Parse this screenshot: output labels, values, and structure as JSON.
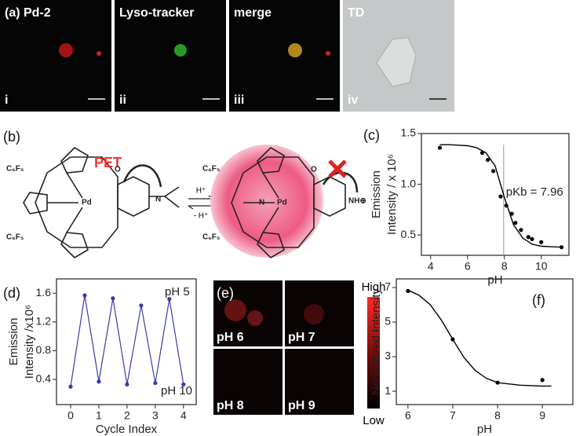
{
  "panel_a": {
    "tiles": [
      {
        "label": "(a) Pd-2",
        "index": "i"
      },
      {
        "label": "Lyso-tracker",
        "index": "ii"
      },
      {
        "label": "merge",
        "index": "iii"
      },
      {
        "label": "TD",
        "index": "iv"
      }
    ]
  },
  "panel_b": {
    "label": "(b)",
    "pet": "PET",
    "forward": "H⁺",
    "backward": "- H⁺",
    "left": {
      "aryl_top": "C₆F₅",
      "aryl_bottom": "C₆F₅",
      "metal": "Pd",
      "nitrogen": "N",
      "oxygen": "O"
    },
    "right": {
      "aryl_top": "C₆F₅",
      "aryl_bottom": "C₆F₅",
      "metal": "Pd",
      "nitrogen": "N",
      "oxygen": "O",
      "ammonium": "NH⊕"
    }
  },
  "panel_e": {
    "label": "(e)",
    "tiles": [
      "pH 6",
      "pH 7",
      "pH 8",
      "pH 9"
    ],
    "colorbar_high": "High",
    "colorbar_low": "Low"
  },
  "chart_data": [
    {
      "type": "scatter",
      "panel_label": "(c)",
      "xlabel": "pH",
      "ylabel": [
        "Emission",
        "Intensity / x 10⁶"
      ],
      "x": [
        4.5,
        6.8,
        7.1,
        7.4,
        7.8,
        8.1,
        8.4,
        8.6,
        8.9,
        9.3,
        9.5,
        10,
        11.1
      ],
      "values": [
        1.36,
        1.31,
        1.24,
        1.13,
        0.88,
        0.79,
        0.71,
        0.62,
        0.55,
        0.48,
        0.46,
        0.43,
        0.38
      ],
      "fit": {
        "x": [
          4.5,
          5,
          5.5,
          6,
          6.5,
          7,
          7.5,
          8,
          8.5,
          9,
          9.5,
          10,
          10.5,
          11.2
        ],
        "values": [
          1.39,
          1.39,
          1.385,
          1.38,
          1.36,
          1.31,
          1.18,
          0.87,
          0.6,
          0.47,
          0.41,
          0.39,
          0.385,
          0.38
        ]
      },
      "pkb": 7.96,
      "annotation": "pKb = 7.96",
      "color": "#000000",
      "xlim": [
        3.5,
        11.5
      ],
      "xticks": [
        4,
        6,
        8,
        10
      ],
      "ylim": [
        0.3,
        1.5
      ],
      "yticks": [
        0.5,
        {
          "value": 1,
          "label": "1.0"
        },
        1.5
      ]
    },
    {
      "type": "line",
      "panel_label": "(d)",
      "xlabel": "Cycle Index",
      "ylabel": [
        "Emission",
        "Intensity /x10⁶"
      ],
      "x": [
        0,
        0.5,
        1,
        1.5,
        2,
        2.5,
        3,
        3.5,
        4
      ],
      "values": [
        0.3,
        1.57,
        0.37,
        1.53,
        0.33,
        1.43,
        0.35,
        1.52,
        0.33
      ],
      "annotations": [
        "pH 5",
        "pH 10"
      ],
      "color": "#3a3aa8",
      "xlim": [
        -0.5,
        4.45
      ],
      "xticks": [
        0,
        1,
        2,
        3,
        4
      ],
      "ylim": [
        0.05,
        1.8
      ],
      "yticks": [
        0.4,
        0.8,
        1.2,
        1.6
      ]
    },
    {
      "type": "scatter",
      "panel_label": "(f)",
      "xlabel": "pH",
      "ylabel": [
        "Normalized Intensity"
      ],
      "x": [
        6,
        7,
        8,
        9
      ],
      "values": [
        6.8,
        4.0,
        1.5,
        1.65
      ],
      "fit": {
        "x": [
          6,
          6.25,
          6.5,
          6.75,
          7,
          7.25,
          7.5,
          7.75,
          8,
          8.5,
          9,
          9.2
        ],
        "values": [
          6.85,
          6.55,
          6.0,
          5.1,
          4.0,
          2.95,
          2.2,
          1.75,
          1.5,
          1.35,
          1.3,
          1.3
        ]
      },
      "color": "#000000",
      "xlim": [
        5.74,
        9.68
      ],
      "xticks": [
        6,
        7,
        8,
        9
      ],
      "ylim": [
        0.23,
        7.5
      ],
      "yticks": [
        1,
        3,
        5,
        7
      ]
    }
  ]
}
